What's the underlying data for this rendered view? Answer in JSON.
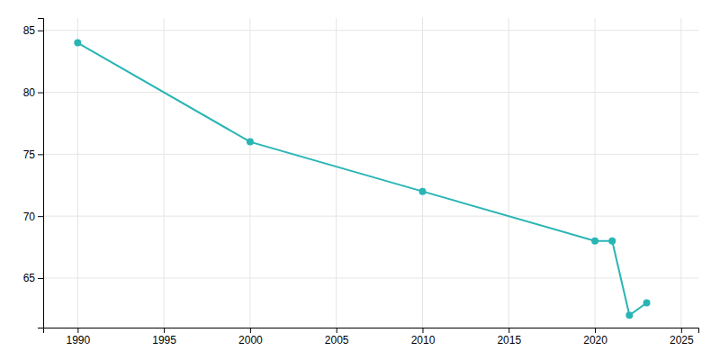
{
  "chart_data": {
    "type": "line",
    "x": [
      1990,
      2000,
      2010,
      2020,
      2021,
      2022,
      2023
    ],
    "values": [
      84,
      76,
      72,
      68,
      68,
      62,
      63
    ],
    "color": "#2ab5b5",
    "marker": "circle",
    "xlim": [
      1988,
      2026
    ],
    "ylim": [
      61,
      86
    ],
    "xticks": [
      1990,
      1995,
      2000,
      2005,
      2010,
      2015,
      2020,
      2025
    ],
    "yticks": [
      65,
      70,
      75,
      80,
      85
    ],
    "grid": true
  }
}
